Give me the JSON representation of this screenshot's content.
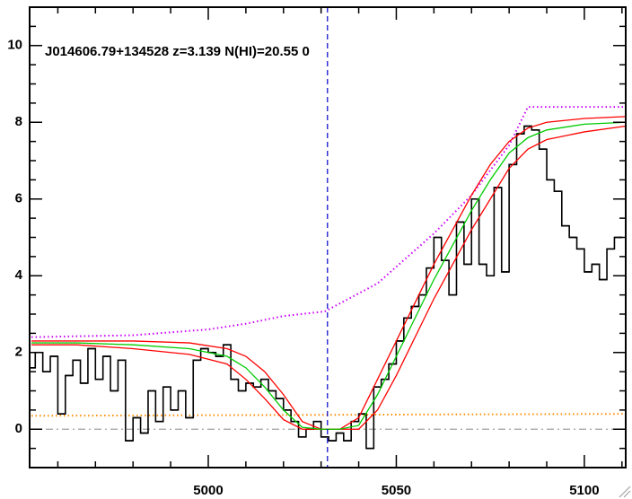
{
  "chart_data": {
    "type": "line",
    "title": "J014606.79+134528 z=3.139 N(HI)=20.55 0",
    "xlim": [
      4952.5,
      5111
    ],
    "ylim": [
      -1,
      11
    ],
    "xticks": [
      5000,
      5050,
      5100
    ],
    "yticks": [
      0,
      2,
      4,
      6,
      8,
      10
    ],
    "xminorticks": [
      4960,
      4970,
      4980,
      4990,
      5010,
      5020,
      5030,
      5040,
      5060,
      5070,
      5080,
      5090,
      5110
    ],
    "yminorticks": [
      -0.5,
      0.5,
      1,
      1.5,
      2.5,
      3,
      3.5,
      4.5,
      5,
      5.5,
      6.5,
      7,
      7.5,
      8.5,
      9,
      9.5,
      10.5
    ],
    "vline": {
      "x": 5031.7,
      "color": "#0000cc"
    },
    "series": [
      {
        "color": "#a0a0a0",
        "style": "dashdot",
        "x": [
          4952.5,
          5111
        ],
        "values": [
          0,
          0
        ]
      },
      {
        "color": "#ff8c00",
        "style": "dotted",
        "x": [
          4953,
          5111
        ],
        "values": [
          0.35,
          0.4
        ]
      },
      {
        "color": "#cc00ff",
        "style": "dotted",
        "x": [
          4953,
          4980,
          5000,
          5010,
          5020,
          5031,
          5045,
          5060,
          5070,
          5080,
          5084,
          5085,
          5111
        ],
        "values": [
          2.4,
          2.45,
          2.6,
          2.75,
          2.95,
          3.07,
          3.8,
          5.1,
          6.1,
          7.4,
          8.2,
          8.4,
          8.4
        ]
      },
      {
        "color": "#000000",
        "style": "step",
        "x": [
          4953,
          4955,
          4957,
          4959,
          4961,
          4963,
          4965,
          4967,
          4969,
          4971,
          4973,
          4975,
          4977,
          4979,
          4981,
          4983,
          4985,
          4987,
          4989,
          4991,
          4993,
          4995,
          4997,
          4999,
          5001,
          5003,
          5005,
          5007,
          5009,
          5011,
          5013,
          5015,
          5017,
          5019,
          5021,
          5023,
          5025,
          5027,
          5029,
          5031,
          5033,
          5035,
          5037,
          5039,
          5041,
          5043,
          5045,
          5047,
          5049,
          5051,
          5053,
          5055,
          5057,
          5059,
          5061,
          5063,
          5065,
          5067,
          5069,
          5071,
          5073,
          5075,
          5077,
          5079,
          5081,
          5083,
          5085,
          5087,
          5089,
          5091,
          5093,
          5095,
          5097,
          5099,
          5101,
          5103,
          5105,
          5107,
          5109
        ],
        "values": [
          1.6,
          2.0,
          1.5,
          1.9,
          0.4,
          1.4,
          1.8,
          1.2,
          2.1,
          1.3,
          1.9,
          1.0,
          1.8,
          -0.3,
          0.3,
          -0.1,
          1.0,
          0.2,
          1.1,
          0.5,
          1.0,
          0.3,
          1.8,
          2.1,
          2.0,
          1.9,
          2.2,
          1.3,
          1.0,
          1.2,
          1.1,
          1.3,
          1.0,
          0.8,
          0.5,
          0.2,
          -0.2,
          0.0,
          0.2,
          -0.2,
          -0.3,
          -0.1,
          -0.3,
          0.2,
          0.4,
          -0.5,
          1.1,
          1.3,
          1.7,
          2.3,
          2.9,
          3.2,
          3.5,
          4.2,
          5.0,
          4.4,
          3.5,
          5.4,
          4.3,
          6.0,
          4.3,
          4.0,
          6.3,
          4.1,
          6.9,
          7.7,
          7.9,
          7.8,
          7.3,
          6.5,
          6.2,
          5.3,
          5.0,
          4.7,
          4.1,
          4.3,
          3.9,
          4.7,
          5.0
        ]
      },
      {
        "color": "#ff0000",
        "style": "solid",
        "x": [
          4953,
          4965,
          4980,
          4995,
          5005,
          5010,
          5015,
          5020,
          5025,
          5030,
          5035,
          5040,
          5045,
          5050,
          5055,
          5060,
          5065,
          5070,
          5075,
          5080,
          5085,
          5090,
          5100,
          5111
        ],
        "values": [
          2.3,
          2.3,
          2.3,
          2.25,
          2.1,
          1.9,
          1.5,
          0.9,
          0.2,
          0.0,
          0.0,
          0.3,
          1.3,
          2.3,
          3.3,
          4.3,
          5.2,
          6.1,
          6.9,
          7.5,
          7.85,
          8.0,
          8.1,
          8.15
        ]
      },
      {
        "color": "#ff0000",
        "style": "solid",
        "x": [
          4953,
          4965,
          4980,
          4995,
          5005,
          5010,
          5015,
          5020,
          5025,
          5030,
          5035,
          5040,
          5045,
          5050,
          5055,
          5060,
          5065,
          5070,
          5075,
          5080,
          5085,
          5090,
          5100,
          5111
        ],
        "values": [
          2.2,
          2.2,
          2.1,
          1.95,
          1.7,
          1.3,
          0.8,
          0.25,
          0.0,
          0.0,
          0.0,
          0.0,
          0.5,
          1.4,
          2.4,
          3.4,
          4.3,
          5.2,
          6.0,
          6.8,
          7.3,
          7.55,
          7.75,
          7.9
        ]
      },
      {
        "color": "#00cc00",
        "style": "solid",
        "x": [
          4953,
          4965,
          4980,
          4995,
          5005,
          5010,
          5015,
          5020,
          5025,
          5030,
          5035,
          5040,
          5045,
          5050,
          5055,
          5060,
          5065,
          5070,
          5075,
          5080,
          5085,
          5090,
          5100,
          5111
        ],
        "values": [
          2.25,
          2.25,
          2.2,
          2.1,
          1.9,
          1.6,
          1.1,
          0.5,
          0.05,
          0.0,
          0.0,
          0.1,
          0.9,
          1.9,
          2.9,
          3.9,
          4.8,
          5.7,
          6.5,
          7.2,
          7.6,
          7.8,
          7.95,
          8.0
        ]
      }
    ]
  }
}
